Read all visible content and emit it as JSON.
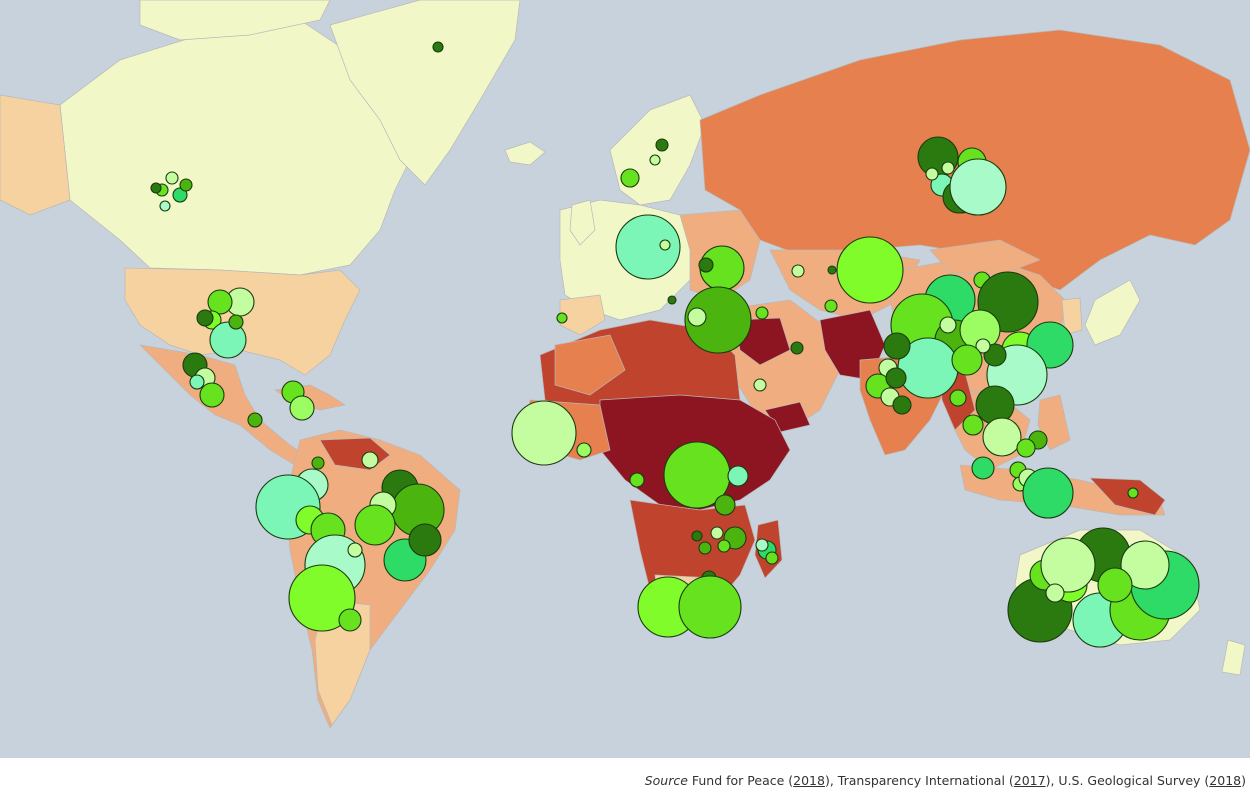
{
  "caption": {
    "label": "Source",
    "parts": [
      {
        "text": " Fund for Peace (",
        "link": "2018",
        "after": "), "
      },
      {
        "text": "Transparency International (",
        "link": "2017",
        "after": "), "
      },
      {
        "text": "U.S. Geological Survey (",
        "link": "2018",
        "after": ")"
      }
    ]
  },
  "colors": {
    "ocean": "#c8d2dc",
    "stable": "#f2f7c8",
    "low": "#f5d2a0",
    "moderate": "#f0ae80",
    "elevated": "#e6804f",
    "high": "#c0432e",
    "critical": "#8c1521",
    "bubble_palette": [
      "#2b7a0f",
      "#4cb40f",
      "#66e21e",
      "#7ffc2a",
      "#9cfd62",
      "#c4fca0",
      "#2ddb66",
      "#7cf6b6",
      "#a8fbc8"
    ]
  }
}
